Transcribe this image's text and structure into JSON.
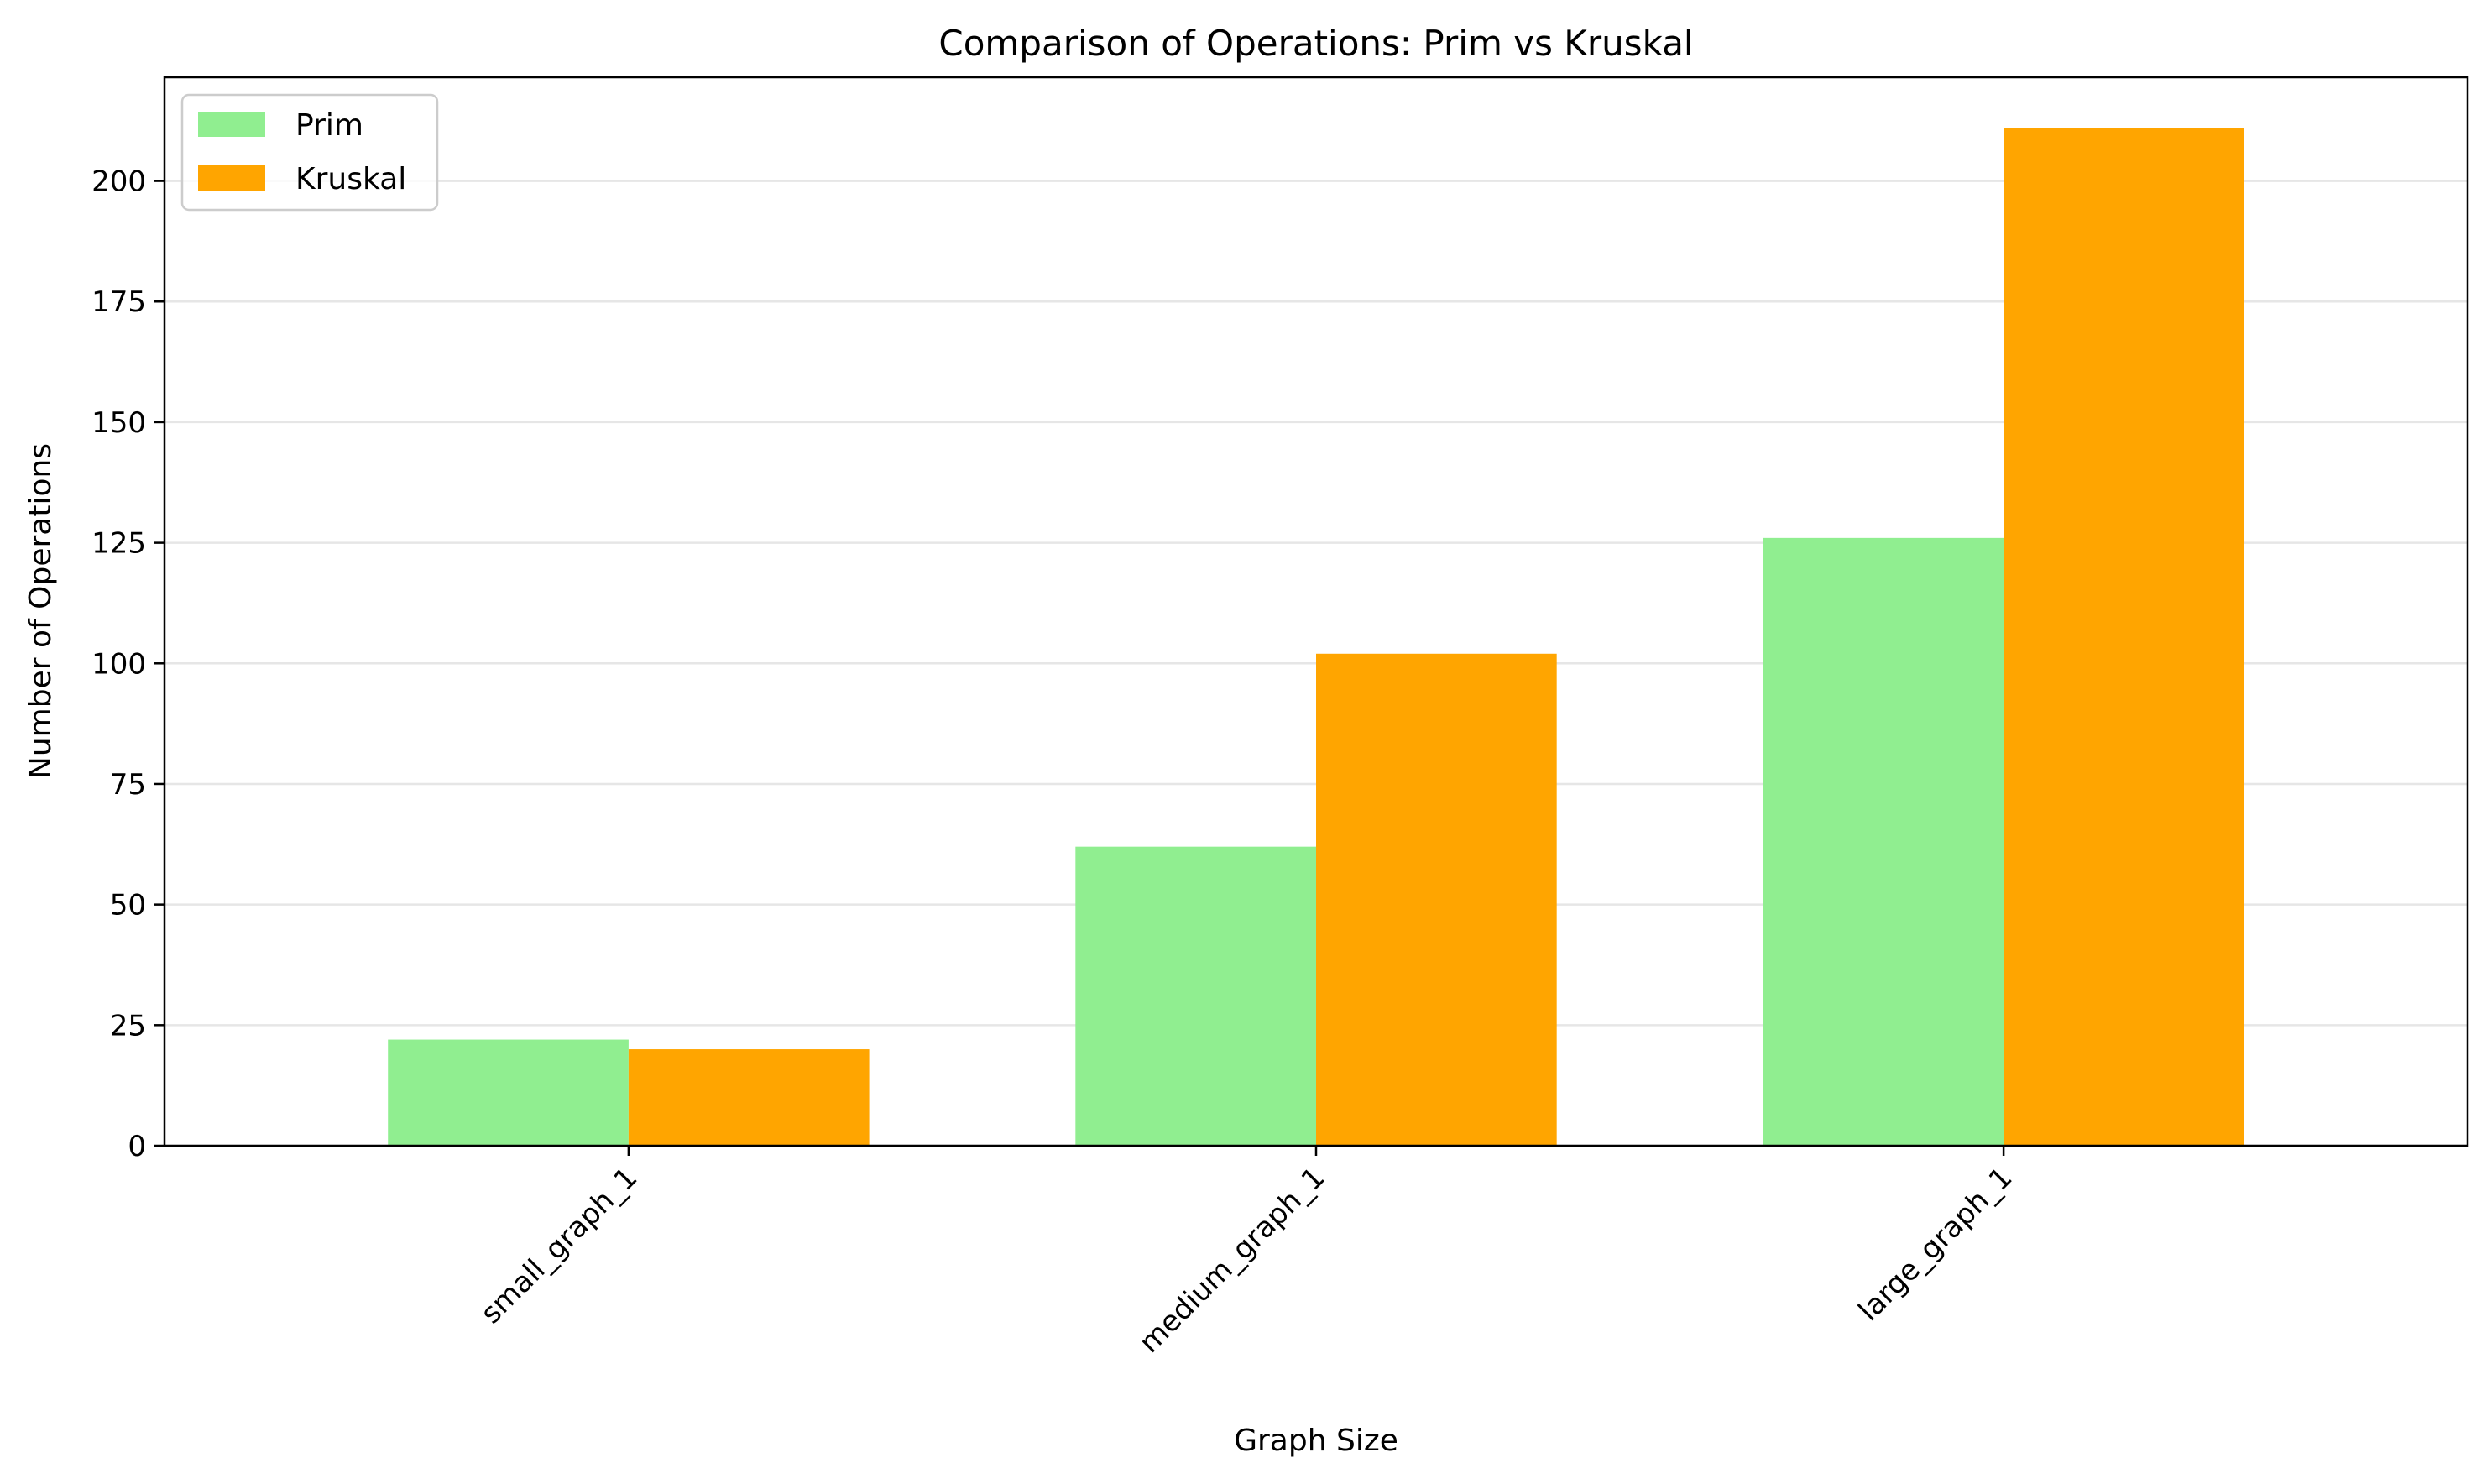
{
  "chart_data": {
    "type": "bar",
    "title": "Comparison of Operations: Prim vs Kruskal",
    "xlabel": "Graph Size",
    "ylabel": "Number of Operations",
    "categories": [
      "small_graph_1",
      "medium_graph_1",
      "large_graph_1"
    ],
    "series": [
      {
        "name": "Prim",
        "values": [
          22,
          62,
          126
        ],
        "color": "#90ee90"
      },
      {
        "name": "Kruskal",
        "values": [
          20,
          102,
          211
        ],
        "color": "#ffa500"
      }
    ],
    "ylim": [
      0,
      221.5
    ],
    "yticks": [
      0,
      25,
      50,
      75,
      100,
      125,
      150,
      175,
      200
    ],
    "grid": "y",
    "legend_position": "top-left"
  }
}
